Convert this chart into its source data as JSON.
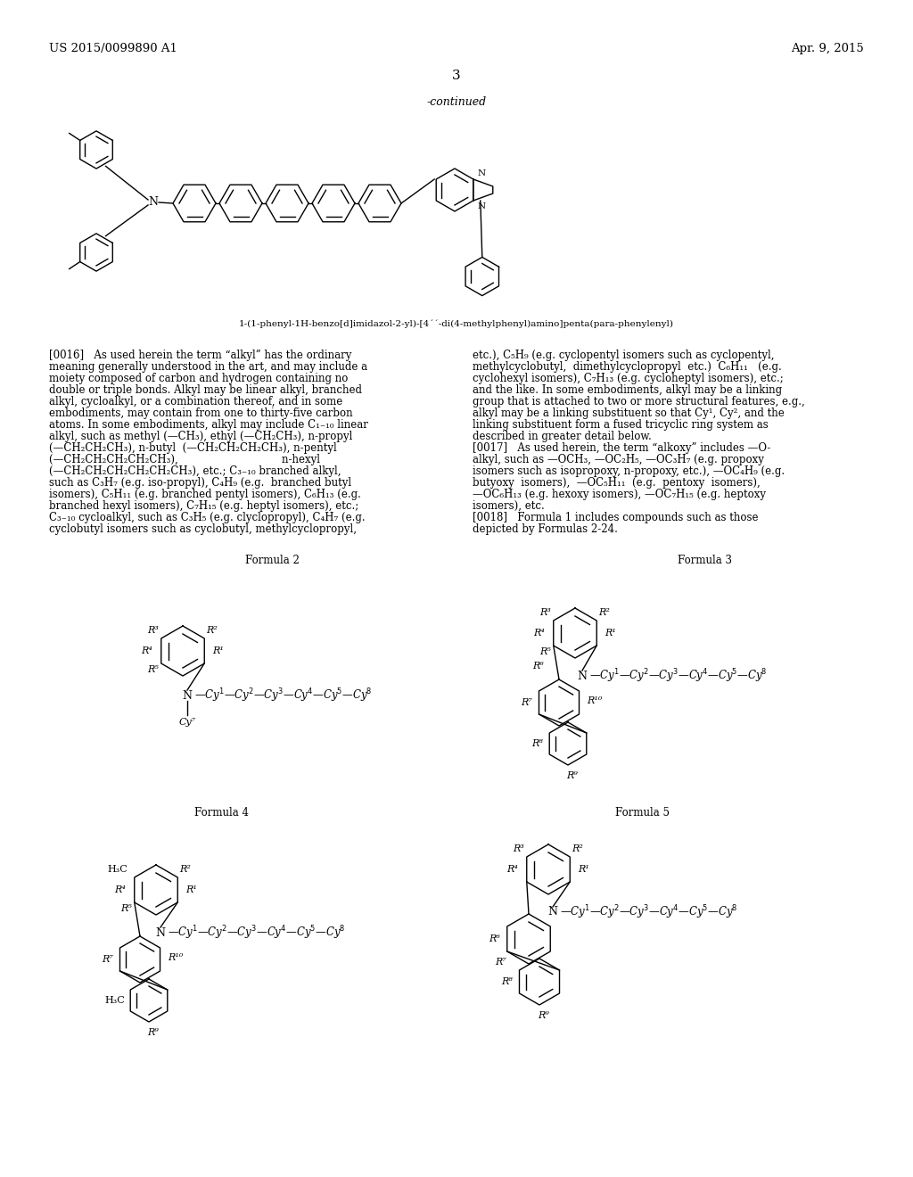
{
  "background_color": "#ffffff",
  "header_left": "US 2015/0099890 A1",
  "header_right": "Apr. 9, 2015",
  "page_number": "3",
  "continued_label": "-continued",
  "molecule_caption": "1-(1-phenyl-1H-benzo[d]imidazol-2-yl)-[4´´-di(4-methylphenyl)amino]penta(para-phenylenyl)",
  "formula2_label": "Formula 2",
  "formula3_label": "Formula 3",
  "formula4_label": "Formula 4",
  "formula5_label": "Formula 5"
}
